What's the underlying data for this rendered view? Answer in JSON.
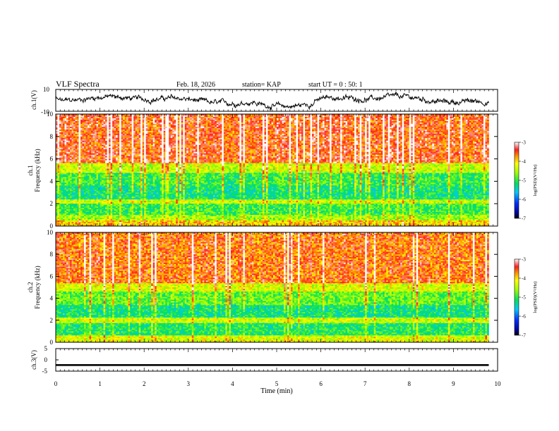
{
  "header": {
    "title": "VLF Spectra",
    "date": "Feb. 18, 2026",
    "station": "station= KAP",
    "start_ut": "start  UT =   0 : 50: 1"
  },
  "chart_data": [
    {
      "type": "line",
      "name": "ch1-voltage",
      "ylabel": "ch.1(V)",
      "ylim": [
        -10,
        10
      ],
      "yticks": [
        -10,
        10
      ],
      "x_range": [
        0,
        9.8
      ],
      "description_values": "noisy waveform around -2..+5 V"
    },
    {
      "type": "heatmap",
      "name": "ch1-spectrogram",
      "ylabel_line1": "ch.1",
      "ylabel_line2": "Frequency (kHz)",
      "ylim": [
        0,
        10
      ],
      "yticks": [
        0,
        2,
        4,
        6,
        8,
        10
      ],
      "x_range": [
        0,
        9.8
      ],
      "colorbar": {
        "label": "log(PSD)(V²/Hz)",
        "range": [
          -7,
          -3
        ],
        "ticks": [
          -3,
          -4,
          -5,
          -6,
          -7
        ]
      },
      "bands": [
        {
          "f0": 0.0,
          "f1": 0.5,
          "level": -4.0
        },
        {
          "f0": 0.5,
          "f1": 1.0,
          "level": -4.6
        },
        {
          "f0": 1.0,
          "f1": 2.0,
          "level": -5.0
        },
        {
          "f0": 2.0,
          "f1": 2.4,
          "level": -4.4
        },
        {
          "f0": 2.4,
          "f1": 3.6,
          "level": -5.2
        },
        {
          "f0": 3.6,
          "f1": 4.8,
          "level": -5.0
        },
        {
          "f0": 4.8,
          "f1": 5.6,
          "level": -4.4
        },
        {
          "f0": 5.6,
          "f1": 10.0,
          "level": -3.5
        }
      ]
    },
    {
      "type": "heatmap",
      "name": "ch2-spectrogram",
      "ylabel_line1": "ch.2",
      "ylabel_line2": "Frequency (kHz)",
      "ylim": [
        0,
        10
      ],
      "yticks": [
        0,
        2,
        4,
        6,
        8,
        10
      ],
      "x_range": [
        0,
        9.8
      ],
      "colorbar": {
        "label": "log(PSD)(V²/Hz)",
        "range": [
          -7,
          -3
        ],
        "ticks": [
          -3,
          -4,
          -5,
          -6,
          -7
        ]
      },
      "bands": [
        {
          "f0": 0.0,
          "f1": 0.6,
          "level": -4.3
        },
        {
          "f0": 0.6,
          "f1": 1.8,
          "level": -5.1
        },
        {
          "f0": 1.8,
          "f1": 2.2,
          "level": -4.4
        },
        {
          "f0": 2.2,
          "f1": 3.4,
          "level": -5.2
        },
        {
          "f0": 3.4,
          "f1": 4.6,
          "level": -4.8
        },
        {
          "f0": 4.6,
          "f1": 5.4,
          "level": -4.3
        },
        {
          "f0": 5.4,
          "f1": 10.0,
          "level": -3.6
        }
      ]
    },
    {
      "type": "line",
      "name": "ch3-voltage",
      "ylabel": "ch.3(V)",
      "ylim": [
        -5,
        5
      ],
      "yticks": [
        -5,
        0,
        5
      ],
      "x_range": [
        0,
        9.8
      ],
      "center": -2.3,
      "spread": 0.4
    }
  ],
  "xaxis": {
    "label": "Time (min)",
    "ticks": [
      0,
      1,
      2,
      3,
      4,
      5,
      6,
      7,
      8,
      9,
      10
    ],
    "xlim": [
      0,
      10
    ]
  }
}
